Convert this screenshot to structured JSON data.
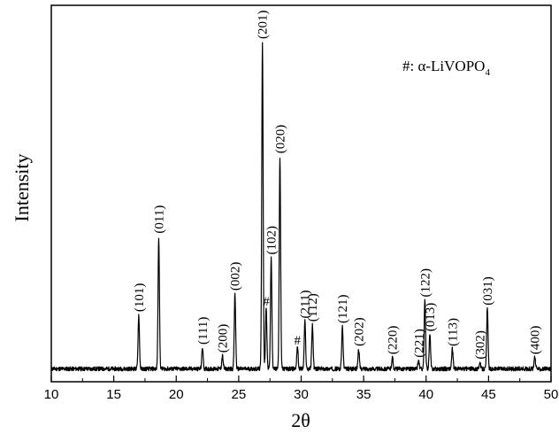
{
  "chart_data": {
    "type": "line",
    "title": "",
    "xlabel": "2θ",
    "ylabel": "Intensity",
    "xlim": [
      10,
      50
    ],
    "ylim": [
      0,
      100
    ],
    "x_ticks": [
      10,
      15,
      20,
      25,
      30,
      35,
      40,
      45,
      50
    ],
    "grid": false,
    "legend": {
      "text_main": "#: α-LiVOPO",
      "text_sub": "4",
      "placement": "top-right"
    },
    "peaks": [
      {
        "x": 17.0,
        "y": 16.5,
        "label": "(101)"
      },
      {
        "x": 18.6,
        "y": 40.5,
        "label": "(011)"
      },
      {
        "x": 22.1,
        "y": 6.5,
        "label": "(111)"
      },
      {
        "x": 23.7,
        "y": 4.0,
        "label": "(200)"
      },
      {
        "x": 24.7,
        "y": 23.0,
        "label": "(002)"
      },
      {
        "x": 26.9,
        "y": 100,
        "label": "(201)"
      },
      {
        "x": 27.2,
        "y": 19.0,
        "label": "#"
      },
      {
        "x": 27.6,
        "y": 34.0,
        "label": "(102)"
      },
      {
        "x": 28.3,
        "y": 65.0,
        "label": "(020)"
      },
      {
        "x": 29.7,
        "y": 7.0,
        "label": "#"
      },
      {
        "x": 30.3,
        "y": 14.5,
        "label": "(211)"
      },
      {
        "x": 30.9,
        "y": 13.5,
        "label": "(112)"
      },
      {
        "x": 33.3,
        "y": 13.0,
        "label": "(121)"
      },
      {
        "x": 34.6,
        "y": 6.0,
        "label": "(202)"
      },
      {
        "x": 37.3,
        "y": 3.5,
        "label": "(220)"
      },
      {
        "x": 39.4,
        "y": 2.5,
        "label": "(221)"
      },
      {
        "x": 39.9,
        "y": 21.0,
        "label": "(122)"
      },
      {
        "x": 40.3,
        "y": 10.5,
        "label": "(013)"
      },
      {
        "x": 42.1,
        "y": 6.0,
        "label": "(113)"
      },
      {
        "x": 44.3,
        "y": 2.0,
        "label": "(302)"
      },
      {
        "x": 44.9,
        "y": 18.5,
        "label": "(031)"
      },
      {
        "x": 48.7,
        "y": 3.5,
        "label": "(400)"
      }
    ]
  }
}
